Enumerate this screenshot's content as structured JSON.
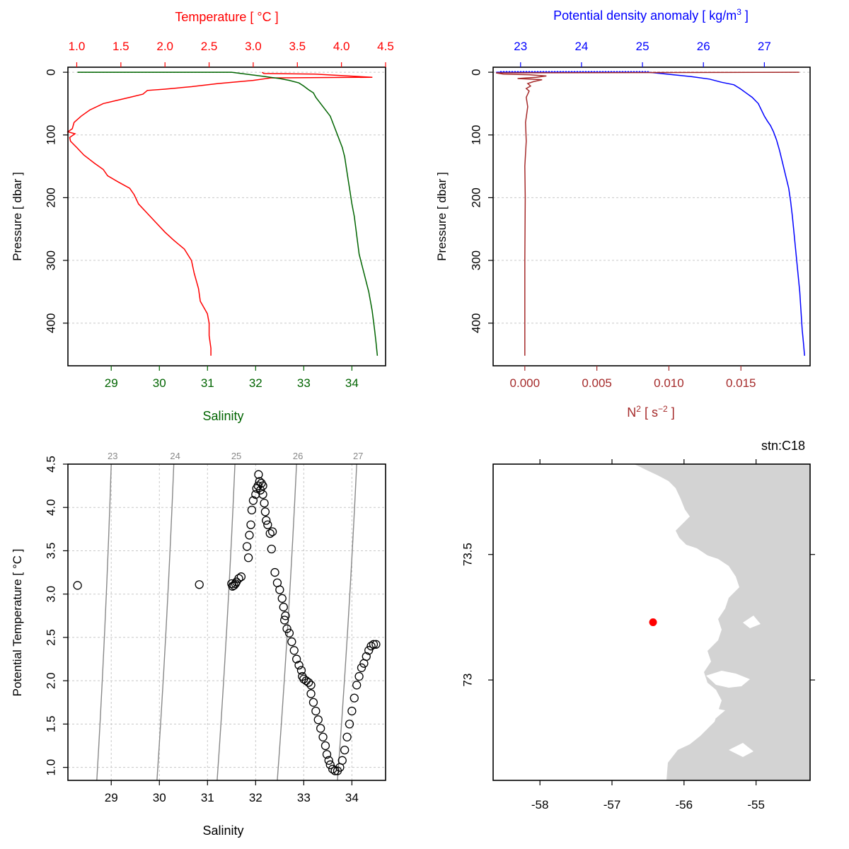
{
  "colors": {
    "temperature": "#ff0000",
    "salinity": "#006400",
    "density": "#0000ff",
    "n2": "#a52a2a",
    "isopycnal": "#888888",
    "land": "#d3d3d3",
    "station": "#ff0000",
    "grid": "#c8c8c8"
  },
  "panels": {
    "ts_profile": {
      "top_axis_label": "Temperature [ °C ]",
      "bottom_axis_label": "Salinity",
      "left_axis_label": "Pressure [ dbar ]"
    },
    "density_profile": {
      "top_axis_label": "Potential density anomaly [ kg/m",
      "top_axis_label_sup": "3",
      "top_axis_label_end": " ]",
      "bottom_axis_label_a": "N",
      "bottom_axis_label_sup": "2",
      "bottom_axis_label_b": " [ s",
      "bottom_axis_label_sup2": "−2",
      "bottom_axis_label_c": " ]",
      "left_axis_label": "Pressure [ dbar ]"
    },
    "ts_diagram": {
      "bottom_axis_label": "Salinity",
      "left_axis_label": "Potential Temperature [ °C ]"
    },
    "map": {
      "station_label": "stn:C18"
    }
  },
  "chart_data": [
    {
      "type": "line",
      "panel": "temperature-salinity-profile",
      "y_axis": {
        "label": "Pressure [ dbar ]",
        "ticks": [
          "0",
          "100",
          "200",
          "300",
          "400"
        ],
        "lim": [
          468,
          -8
        ],
        "reversed": true
      },
      "top_axis": {
        "label": "Temperature [ °C ]",
        "ticks": [
          "1.0",
          "1.5",
          "2.0",
          "2.5",
          "3.0",
          "3.5",
          "4.0",
          "4.5"
        ],
        "lim": [
          0.9,
          4.5
        ]
      },
      "bottom_axis": {
        "label": "Salinity",
        "ticks": [
          "29",
          "30",
          "31",
          "32",
          "33",
          "34"
        ],
        "lim": [
          28.1,
          34.7
        ]
      },
      "grid": true,
      "series": [
        {
          "x_axis": "top",
          "points": [
            [
              3.1,
              0
            ],
            [
              3.12,
              2
            ],
            [
              3.7,
              3
            ],
            [
              4.35,
              8
            ],
            [
              3.2,
              9
            ],
            [
              3.0,
              13
            ],
            [
              2.6,
              18
            ],
            [
              2.3,
              23
            ],
            [
              2.0,
              27
            ],
            [
              1.8,
              29
            ],
            [
              1.75,
              35
            ],
            [
              1.6,
              40
            ],
            [
              1.45,
              45
            ],
            [
              1.3,
              50
            ],
            [
              1.15,
              60
            ],
            [
              1.05,
              70
            ],
            [
              0.97,
              80
            ],
            [
              0.95,
              90
            ],
            [
              0.9,
              95
            ],
            [
              0.98,
              98
            ],
            [
              0.92,
              104
            ],
            [
              0.93,
              110
            ],
            [
              1.0,
              120
            ],
            [
              1.08,
              132
            ],
            [
              1.2,
              145
            ],
            [
              1.3,
              155
            ],
            [
              1.35,
              165
            ],
            [
              1.47,
              175
            ],
            [
              1.6,
              185
            ],
            [
              1.65,
              195
            ],
            [
              1.7,
              210
            ],
            [
              1.8,
              225
            ],
            [
              1.9,
              240
            ],
            [
              2.0,
              255
            ],
            [
              2.1,
              268
            ],
            [
              2.22,
              282
            ],
            [
              2.3,
              300
            ],
            [
              2.33,
              320
            ],
            [
              2.38,
              345
            ],
            [
              2.4,
              365
            ],
            [
              2.48,
              385
            ],
            [
              2.5,
              400
            ],
            [
              2.5,
              420
            ],
            [
              2.52,
              440
            ],
            [
              2.52,
              452
            ]
          ]
        },
        {
          "x_axis": "bottom",
          "points": [
            [
              28.3,
              0
            ],
            [
              31.5,
              0
            ],
            [
              31.7,
              2
            ],
            [
              31.9,
              4
            ],
            [
              32.2,
              7
            ],
            [
              32.5,
              10
            ],
            [
              32.7,
              13
            ],
            [
              32.9,
              17
            ],
            [
              33.0,
              22
            ],
            [
              33.1,
              28
            ],
            [
              33.2,
              33
            ],
            [
              33.25,
              40
            ],
            [
              33.35,
              50
            ],
            [
              33.45,
              60
            ],
            [
              33.55,
              70
            ],
            [
              33.6,
              80
            ],
            [
              33.65,
              90
            ],
            [
              33.7,
              100
            ],
            [
              33.75,
              110
            ],
            [
              33.8,
              120
            ],
            [
              33.85,
              135
            ],
            [
              33.88,
              150
            ],
            [
              33.92,
              170
            ],
            [
              33.96,
              190
            ],
            [
              34.0,
              210
            ],
            [
              34.05,
              230
            ],
            [
              34.1,
              260
            ],
            [
              34.15,
              290
            ],
            [
              34.25,
              320
            ],
            [
              34.35,
              350
            ],
            [
              34.42,
              380
            ],
            [
              34.47,
              410
            ],
            [
              34.5,
              430
            ],
            [
              34.53,
              452
            ]
          ]
        }
      ]
    },
    {
      "type": "line",
      "panel": "density-n2-profile",
      "y_axis": {
        "label": "Pressure [ dbar ]",
        "ticks": [
          "0",
          "100",
          "200",
          "300",
          "400"
        ],
        "lim": [
          468,
          -8
        ],
        "reversed": true
      },
      "top_axis": {
        "label": "Potential density anomaly [ kg/m3 ]",
        "ticks": [
          "23",
          "24",
          "25",
          "26",
          "27"
        ],
        "lim": [
          22.55,
          27.75
        ]
      },
      "bottom_axis": {
        "label": "N2 [ s-2 ]",
        "ticks": [
          "0.000",
          "0.005",
          "0.010",
          "0.015"
        ],
        "lim": [
          -0.0022,
          0.0198
        ]
      },
      "grid": true,
      "series": [
        {
          "x_axis": "top",
          "points": [
            [
              22.6,
              0
            ],
            [
              25.1,
              0
            ],
            [
              25.3,
              2
            ],
            [
              25.5,
              4
            ],
            [
              25.8,
              7
            ],
            [
              26.1,
              11
            ],
            [
              26.3,
              16
            ],
            [
              26.5,
              20
            ],
            [
              26.6,
              26
            ],
            [
              26.7,
              33
            ],
            [
              26.8,
              40
            ],
            [
              26.9,
              50
            ],
            [
              26.95,
              60
            ],
            [
              27.0,
              70
            ],
            [
              27.05,
              78
            ],
            [
              27.1,
              85
            ],
            [
              27.15,
              95
            ],
            [
              27.2,
              108
            ],
            [
              27.25,
              125
            ],
            [
              27.3,
              145
            ],
            [
              27.35,
              165
            ],
            [
              27.4,
              185
            ],
            [
              27.43,
              205
            ],
            [
              27.46,
              230
            ],
            [
              27.49,
              260
            ],
            [
              27.52,
              290
            ],
            [
              27.55,
              320
            ],
            [
              27.58,
              350
            ],
            [
              27.6,
              380
            ],
            [
              27.62,
              410
            ],
            [
              27.64,
              430
            ],
            [
              27.66,
              452
            ]
          ]
        },
        {
          "x_axis": "bottom",
          "points": [
            [
              0.019,
              0
            ],
            [
              -0.002,
              1
            ],
            [
              -0.0015,
              3
            ],
            [
              0.0003,
              4
            ],
            [
              0.0015,
              6
            ],
            [
              0.0008,
              8
            ],
            [
              -0.0005,
              10
            ],
            [
              0.0012,
              12
            ],
            [
              0.0006,
              15
            ],
            [
              0.0002,
              18
            ],
            [
              0.0004,
              22
            ],
            [
              0.0001,
              26
            ],
            [
              0.0003,
              30
            ],
            [
              0.0001,
              40
            ],
            [
              0.0002,
              55
            ],
            [
              5e-05,
              80
            ],
            [
              0.0001,
              110
            ],
            [
              0.0,
              150
            ],
            [
              3e-05,
              200
            ],
            [
              0.0,
              300
            ],
            [
              0.0,
              452
            ]
          ]
        }
      ]
    },
    {
      "type": "scatter",
      "panel": "ts-diagram",
      "xlabel": "Salinity",
      "ylabel": "Potential Temperature [ °C ]",
      "x_ticks": [
        "29",
        "30",
        "31",
        "32",
        "33",
        "34"
      ],
      "y_ticks": [
        "1.0",
        "1.5",
        "2.0",
        "2.5",
        "3.0",
        "3.5",
        "4.0",
        "4.5"
      ],
      "xlim": [
        28.1,
        34.7
      ],
      "ylim": [
        0.85,
        4.5
      ],
      "grid": true,
      "isopycnal_labels": [
        "23",
        "24",
        "25",
        "26",
        "27"
      ],
      "isopycnals": [
        {
          "label": "23",
          "bottom": [
            28.7,
            0.85
          ],
          "top": [
            29.0,
            4.5
          ]
        },
        {
          "label": "24",
          "bottom": [
            29.95,
            0.85
          ],
          "top": [
            30.3,
            4.5
          ]
        },
        {
          "label": "25",
          "bottom": [
            31.2,
            0.85
          ],
          "top": [
            31.57,
            4.5
          ]
        },
        {
          "label": "26",
          "bottom": [
            32.45,
            0.85
          ],
          "top": [
            32.85,
            4.5
          ]
        },
        {
          "label": "27",
          "bottom": [
            33.7,
            0.85
          ],
          "top": [
            34.1,
            4.5
          ]
        }
      ],
      "points": [
        [
          28.3,
          3.1
        ],
        [
          30.83,
          3.11
        ],
        [
          31.5,
          3.12
        ],
        [
          31.52,
          3.09
        ],
        [
          31.55,
          3.1
        ],
        [
          31.58,
          3.12
        ],
        [
          31.6,
          3.14
        ],
        [
          31.65,
          3.18
        ],
        [
          31.7,
          3.2
        ],
        [
          31.85,
          3.42
        ],
        [
          31.82,
          3.55
        ],
        [
          31.87,
          3.68
        ],
        [
          31.9,
          3.8
        ],
        [
          31.92,
          3.97
        ],
        [
          31.95,
          4.08
        ],
        [
          32.0,
          4.15
        ],
        [
          32.02,
          4.22
        ],
        [
          32.05,
          4.25
        ],
        [
          32.06,
          4.38
        ],
        [
          32.08,
          4.3
        ],
        [
          32.1,
          4.2
        ],
        [
          32.12,
          4.28
        ],
        [
          32.15,
          4.25
        ],
        [
          32.15,
          4.15
        ],
        [
          32.18,
          4.05
        ],
        [
          32.2,
          3.95
        ],
        [
          32.22,
          3.85
        ],
        [
          32.25,
          3.8
        ],
        [
          32.3,
          3.7
        ],
        [
          32.35,
          3.72
        ],
        [
          32.33,
          3.52
        ],
        [
          32.4,
          3.25
        ],
        [
          32.45,
          3.13
        ],
        [
          32.5,
          3.05
        ],
        [
          32.55,
          2.95
        ],
        [
          32.58,
          2.85
        ],
        [
          32.62,
          2.75
        ],
        [
          32.6,
          2.7
        ],
        [
          32.65,
          2.6
        ],
        [
          32.7,
          2.55
        ],
        [
          32.75,
          2.45
        ],
        [
          32.8,
          2.35
        ],
        [
          32.85,
          2.25
        ],
        [
          32.9,
          2.18
        ],
        [
          32.95,
          2.12
        ],
        [
          32.97,
          2.05
        ],
        [
          33.0,
          2.02
        ],
        [
          33.05,
          2.0
        ],
        [
          33.1,
          1.98
        ],
        [
          33.15,
          1.95
        ],
        [
          33.15,
          1.85
        ],
        [
          33.2,
          1.75
        ],
        [
          33.25,
          1.65
        ],
        [
          33.3,
          1.55
        ],
        [
          33.35,
          1.45
        ],
        [
          33.4,
          1.35
        ],
        [
          33.45,
          1.25
        ],
        [
          33.48,
          1.15
        ],
        [
          33.52,
          1.08
        ],
        [
          33.55,
          1.03
        ],
        [
          33.6,
          0.98
        ],
        [
          33.65,
          0.96
        ],
        [
          33.7,
          0.96
        ],
        [
          33.75,
          1.0
        ],
        [
          33.8,
          1.08
        ],
        [
          33.85,
          1.2
        ],
        [
          33.9,
          1.35
        ],
        [
          33.95,
          1.5
        ],
        [
          34.0,
          1.65
        ],
        [
          34.05,
          1.8
        ],
        [
          34.1,
          1.95
        ],
        [
          34.15,
          2.05
        ],
        [
          34.2,
          2.15
        ],
        [
          34.25,
          2.2
        ],
        [
          34.3,
          2.28
        ],
        [
          34.35,
          2.35
        ],
        [
          34.4,
          2.4
        ],
        [
          34.45,
          2.42
        ],
        [
          34.5,
          2.42
        ]
      ]
    },
    {
      "type": "map",
      "panel": "station-map",
      "station": "stn:C18",
      "x_ticks": [
        "-58",
        "-57",
        "-56",
        "-55"
      ],
      "y_ticks": [
        "73.5",
        "73"
      ],
      "xlim": [
        -58.65,
        -54.25
      ],
      "ylim": [
        72.6,
        73.86
      ],
      "station_point": [
        -56.43,
        73.23
      ]
    }
  ]
}
